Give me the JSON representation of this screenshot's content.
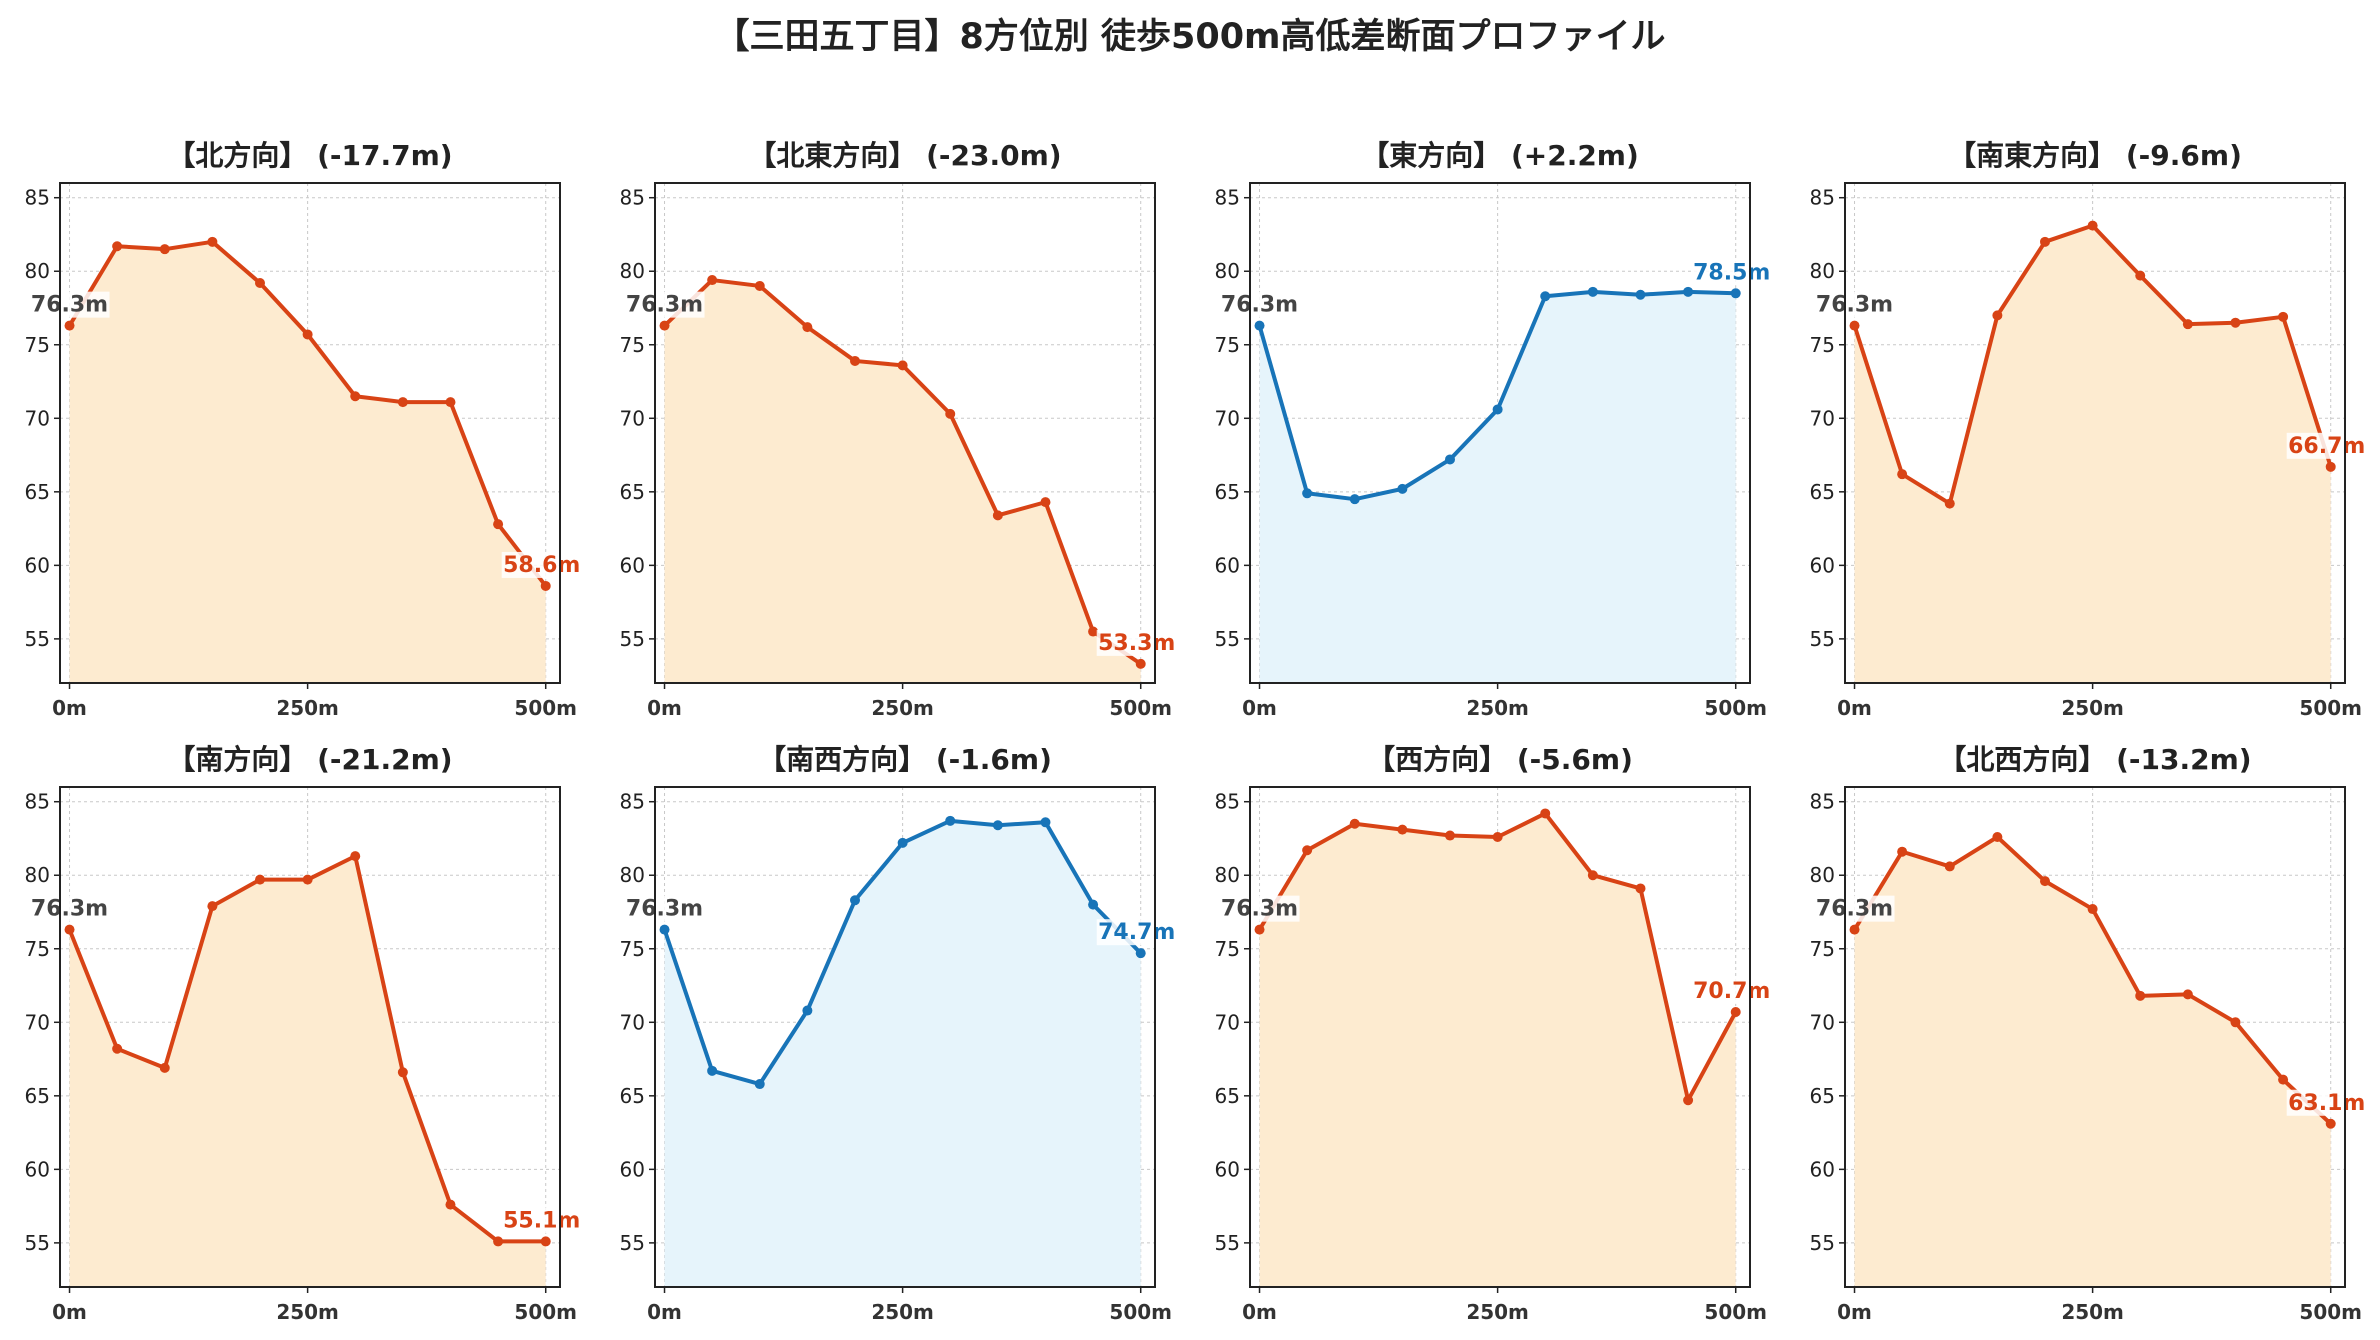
{
  "title": "【三田五丁目】8方位別 徒歩500m高低差断面プロファイル",
  "colors": {
    "down_line": "#d84315",
    "down_fill": "#fdebd0",
    "up_line": "#1874b8",
    "up_fill": "#e6f4fb",
    "start_label": "#444444"
  },
  "chart_data": [
    {
      "type": "area",
      "title": "【北方向】 (-17.7m)",
      "trend": "down",
      "x": [
        0,
        50,
        100,
        150,
        200,
        250,
        300,
        350,
        400,
        450,
        500
      ],
      "values": [
        76.3,
        81.7,
        81.5,
        82.0,
        79.2,
        75.7,
        71.5,
        71.1,
        71.1,
        62.8,
        58.6
      ],
      "start_label": "76.3m",
      "end_label": "58.6m"
    },
    {
      "type": "area",
      "title": "【北東方向】 (-23.0m)",
      "trend": "down",
      "x": [
        0,
        50,
        100,
        150,
        200,
        250,
        300,
        350,
        400,
        450,
        500
      ],
      "values": [
        76.3,
        79.4,
        79.0,
        76.2,
        73.9,
        73.6,
        70.3,
        63.4,
        64.3,
        55.5,
        53.3
      ],
      "start_label": "76.3m",
      "end_label": "53.3m"
    },
    {
      "type": "area",
      "title": "【東方向】 (+2.2m)",
      "trend": "up",
      "x": [
        0,
        50,
        100,
        150,
        200,
        250,
        300,
        350,
        400,
        450,
        500
      ],
      "values": [
        76.3,
        64.9,
        64.5,
        65.2,
        67.2,
        70.6,
        78.3,
        78.6,
        78.4,
        78.6,
        78.5
      ],
      "start_label": "76.3m",
      "end_label": "78.5m"
    },
    {
      "type": "area",
      "title": "【南東方向】 (-9.6m)",
      "trend": "down",
      "x": [
        0,
        50,
        100,
        150,
        200,
        250,
        300,
        350,
        400,
        450,
        500
      ],
      "values": [
        76.3,
        66.2,
        64.2,
        77.0,
        82.0,
        83.1,
        79.7,
        76.4,
        76.5,
        76.9,
        66.7
      ],
      "start_label": "76.3m",
      "end_label": "66.7m"
    },
    {
      "type": "area",
      "title": "【南方向】 (-21.2m)",
      "trend": "down",
      "x": [
        0,
        50,
        100,
        150,
        200,
        250,
        300,
        350,
        400,
        450,
        500
      ],
      "values": [
        76.3,
        68.2,
        66.9,
        77.9,
        79.7,
        79.7,
        81.3,
        66.6,
        57.6,
        55.1,
        55.1
      ],
      "start_label": "76.3m",
      "end_label": "55.1m"
    },
    {
      "type": "area",
      "title": "【南西方向】 (-1.6m)",
      "trend": "up",
      "x": [
        0,
        50,
        100,
        150,
        200,
        250,
        300,
        350,
        400,
        450,
        500
      ],
      "values": [
        76.3,
        66.7,
        65.8,
        70.8,
        78.3,
        82.2,
        83.7,
        83.4,
        83.6,
        78.0,
        74.7
      ],
      "start_label": "76.3m",
      "end_label": "74.7m"
    },
    {
      "type": "area",
      "title": "【西方向】 (-5.6m)",
      "trend": "down",
      "x": [
        0,
        50,
        100,
        150,
        200,
        250,
        300,
        350,
        400,
        450,
        500
      ],
      "values": [
        76.3,
        81.7,
        83.5,
        83.1,
        82.7,
        82.6,
        84.2,
        80.0,
        79.1,
        64.7,
        70.7
      ],
      "start_label": "76.3m",
      "end_label": "70.7m"
    },
    {
      "type": "area",
      "title": "【北西方向】 (-13.2m)",
      "trend": "down",
      "x": [
        0,
        50,
        100,
        150,
        200,
        250,
        300,
        350,
        400,
        450,
        500
      ],
      "values": [
        76.3,
        81.6,
        80.6,
        82.6,
        79.6,
        77.7,
        71.8,
        71.9,
        70.0,
        66.1,
        63.1
      ],
      "start_label": "76.3m",
      "end_label": "63.1m"
    }
  ],
  "axes": {
    "xlim": [
      -10,
      515
    ],
    "ylim": [
      52,
      86
    ],
    "yticks": [
      55,
      60,
      65,
      70,
      75,
      80,
      85
    ],
    "xticks": [
      0,
      250,
      500
    ],
    "xtick_labels": [
      "0m",
      "250m",
      "500m"
    ],
    "grid": true
  }
}
